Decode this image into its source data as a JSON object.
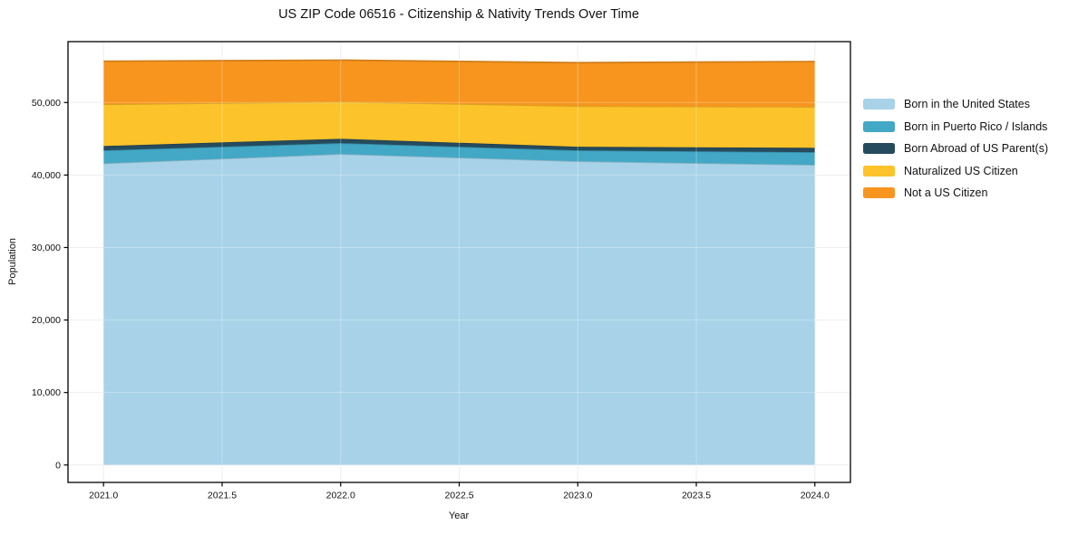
{
  "chart_data": {
    "type": "area",
    "stacked": true,
    "title": "US ZIP Code 06516 - Citizenship & Nativity Trends Over Time",
    "xlabel": "Year",
    "ylabel": "Population",
    "x": [
      2021,
      2022,
      2023,
      2024
    ],
    "series": [
      {
        "name": "Born in the United States",
        "color": "#A8D2E8",
        "values": [
          41600,
          42900,
          41900,
          41400
        ]
      },
      {
        "name": "Born in Puerto Rico / Islands",
        "color": "#42A8C5",
        "values": [
          1800,
          1500,
          1500,
          1750
        ]
      },
      {
        "name": "Born Abroad of US Parent(s)",
        "color": "#254B5E",
        "values": [
          600,
          600,
          500,
          600
        ]
      },
      {
        "name": "Naturalized US Citizen",
        "color": "#FCC32A",
        "values": [
          5750,
          5100,
          5600,
          5650
        ]
      },
      {
        "name": "Not a US Citizen",
        "color": "#F7951E",
        "values": [
          5950,
          5750,
          6000,
          6250
        ]
      }
    ],
    "stacked_totals": [
      55700,
      55850,
      55500,
      55650
    ],
    "xticks": [
      "2021.0",
      "2021.5",
      "2022.0",
      "2022.5",
      "2023.0",
      "2023.5",
      "2024.0"
    ],
    "xtick_values": [
      2021.0,
      2021.5,
      2022.0,
      2022.5,
      2023.0,
      2023.5,
      2024.0
    ],
    "yticks": [
      "0",
      "10,000",
      "20,000",
      "30,000",
      "40,000",
      "50,000"
    ],
    "ytick_values": [
      0,
      10000,
      20000,
      30000,
      40000,
      50000
    ],
    "xlim": [
      2020.85,
      2024.15
    ],
    "ylim": [
      -2400,
      58400
    ],
    "grid": true,
    "legend_position": "right-outside",
    "legend_frame": false,
    "axis_color": "#000000",
    "grid_color": "#e9e9e9",
    "background_color": "#ffffff"
  }
}
